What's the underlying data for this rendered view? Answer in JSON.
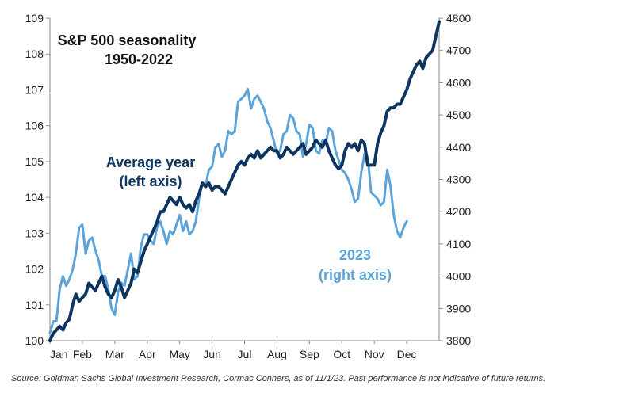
{
  "chart_data": {
    "type": "line",
    "title": "S&P 500 seasonality",
    "subtitle": "1950-2022",
    "x_ticks": [
      "Jan",
      "Feb",
      "Mar",
      "Apr",
      "May",
      "Jun",
      "Jul",
      "Aug",
      "Sep",
      "Oct",
      "Nov",
      "Dec"
    ],
    "x_range": [
      0,
      12
    ],
    "left_axis": {
      "ticks": [
        100,
        101,
        102,
        103,
        104,
        105,
        106,
        107,
        108,
        109
      ],
      "ylim": [
        100,
        109
      ]
    },
    "right_axis": {
      "ticks": [
        3800,
        3900,
        4000,
        4100,
        4200,
        4300,
        4400,
        4500,
        4600,
        4700,
        4800
      ],
      "ylim": [
        3800,
        4800
      ]
    },
    "grid": false,
    "series": [
      {
        "name": "Average year",
        "axis": "left",
        "color": "#0d3560",
        "x": [
          0.0,
          0.1,
          0.2,
          0.3,
          0.4,
          0.5,
          0.6,
          0.7,
          0.8,
          0.9,
          1.0,
          1.1,
          1.2,
          1.3,
          1.4,
          1.5,
          1.6,
          1.7,
          1.8,
          1.9,
          2.0,
          2.1,
          2.2,
          2.3,
          2.4,
          2.5,
          2.6,
          2.7,
          2.8,
          2.9,
          3.0,
          3.1,
          3.2,
          3.3,
          3.4,
          3.5,
          3.6,
          3.7,
          3.8,
          3.9,
          4.0,
          4.1,
          4.2,
          4.3,
          4.4,
          4.5,
          4.6,
          4.7,
          4.8,
          4.9,
          5.0,
          5.1,
          5.2,
          5.3,
          5.4,
          5.5,
          5.6,
          5.7,
          5.8,
          5.9,
          6.0,
          6.1,
          6.2,
          6.3,
          6.4,
          6.5,
          6.6,
          6.7,
          6.8,
          6.9,
          7.0,
          7.1,
          7.2,
          7.3,
          7.4,
          7.5,
          7.6,
          7.7,
          7.8,
          7.9,
          8.0,
          8.1,
          8.2,
          8.3,
          8.4,
          8.5,
          8.6,
          8.7,
          8.8,
          8.9,
          9.0,
          9.1,
          9.2,
          9.3,
          9.4,
          9.5,
          9.6,
          9.7,
          9.8,
          9.9,
          10.0,
          10.1,
          10.2,
          10.3,
          10.4,
          10.5,
          10.6,
          10.7,
          10.8,
          10.9,
          11.0,
          11.1,
          11.2,
          11.3,
          11.4,
          11.5,
          11.6,
          11.7,
          11.8,
          11.9,
          12.0
        ],
        "values": [
          100.0,
          100.2,
          100.3,
          100.4,
          100.3,
          100.5,
          100.6,
          101.0,
          101.3,
          101.1,
          101.2,
          101.3,
          101.6,
          101.5,
          101.4,
          101.6,
          101.8,
          101.5,
          101.3,
          101.2,
          101.4,
          101.7,
          101.5,
          101.2,
          101.4,
          101.6,
          102.0,
          101.9,
          102.2,
          102.5,
          102.7,
          102.9,
          103.1,
          103.3,
          103.6,
          103.6,
          103.8,
          104.0,
          103.9,
          103.8,
          104.0,
          103.8,
          103.7,
          103.8,
          103.6,
          103.9,
          104.1,
          104.4,
          104.3,
          104.4,
          104.2,
          104.3,
          104.3,
          104.2,
          104.1,
          104.3,
          104.5,
          104.7,
          104.9,
          105.0,
          104.9,
          105.1,
          105.2,
          105.1,
          105.3,
          105.1,
          105.2,
          105.3,
          105.4,
          105.3,
          105.3,
          105.1,
          105.2,
          105.4,
          105.3,
          105.2,
          105.3,
          105.4,
          105.5,
          105.2,
          105.3,
          105.4,
          105.6,
          105.5,
          105.4,
          105.6,
          105.3,
          105.1,
          104.9,
          104.8,
          104.9,
          105.3,
          105.5,
          105.4,
          105.5,
          105.3,
          105.6,
          105.5,
          104.9,
          104.9,
          104.9,
          105.5,
          105.8,
          106.0,
          106.4,
          106.5,
          106.5,
          106.6,
          106.6,
          106.8,
          107.0,
          107.3,
          107.5,
          107.7,
          107.8,
          107.6,
          107.9,
          108.0,
          108.1,
          108.5,
          108.9
        ],
        "annotation": "Average year\n(left axis)"
      },
      {
        "name": "2023",
        "axis": "right",
        "color": "#5aa4da",
        "x": [
          0.0,
          0.1,
          0.2,
          0.3,
          0.4,
          0.5,
          0.6,
          0.7,
          0.8,
          0.9,
          1.0,
          1.1,
          1.2,
          1.3,
          1.4,
          1.5,
          1.6,
          1.7,
          1.8,
          1.9,
          2.0,
          2.1,
          2.2,
          2.3,
          2.4,
          2.5,
          2.6,
          2.7,
          2.8,
          2.9,
          3.0,
          3.1,
          3.2,
          3.3,
          3.4,
          3.5,
          3.6,
          3.7,
          3.8,
          3.9,
          4.0,
          4.1,
          4.2,
          4.3,
          4.4,
          4.5,
          4.6,
          4.7,
          4.8,
          4.9,
          5.0,
          5.1,
          5.2,
          5.3,
          5.4,
          5.5,
          5.6,
          5.7,
          5.8,
          5.9,
          6.0,
          6.1,
          6.2,
          6.3,
          6.4,
          6.5,
          6.6,
          6.7,
          6.8,
          6.9,
          7.0,
          7.1,
          7.2,
          7.3,
          7.4,
          7.5,
          7.6,
          7.7,
          7.8,
          7.9,
          8.0,
          8.1,
          8.2,
          8.3,
          8.4,
          8.5,
          8.6,
          8.7,
          8.8,
          8.9,
          9.0,
          9.1,
          9.2,
          9.3,
          9.4,
          9.5,
          9.6,
          9.7,
          9.8,
          9.9,
          10.0,
          10.1,
          10.2,
          10.3,
          10.4,
          10.5,
          10.6,
          10.7,
          10.8,
          10.9,
          11.0
        ],
        "values": [
          3824,
          3860,
          3860,
          3960,
          4000,
          3970,
          3990,
          4020,
          4070,
          4150,
          4160,
          4070,
          4110,
          4120,
          4080,
          4050,
          4000,
          4000,
          3960,
          3900,
          3880,
          3950,
          3980,
          3970,
          4020,
          4070,
          3990,
          4000,
          4090,
          4130,
          4130,
          4110,
          4100,
          4150,
          4170,
          4140,
          4100,
          4140,
          4130,
          4160,
          4190,
          4140,
          4170,
          4130,
          4140,
          4170,
          4240,
          4290,
          4280,
          4330,
          4340,
          4400,
          4410,
          4370,
          4390,
          4450,
          4440,
          4450,
          4540,
          4550,
          4560,
          4580,
          4520,
          4550,
          4560,
          4540,
          4520,
          4480,
          4460,
          4420,
          4380,
          4390,
          4440,
          4450,
          4500,
          4490,
          4450,
          4440,
          4370,
          4410,
          4470,
          4460,
          4390,
          4380,
          4420,
          4410,
          4460,
          4450,
          4390,
          4360,
          4330,
          4320,
          4300,
          4270,
          4230,
          4240,
          4320,
          4380,
          4370,
          4260,
          4250,
          4240,
          4220,
          4230,
          4330,
          4280,
          4190,
          4140,
          4120,
          4150,
          4170
        ],
        "annotation": "2023\n(right axis)"
      }
    ],
    "source_note": "Source: Goldman Sachs Global Investment Research, Cormac Conners,  as of 11/1/23. Past performance is not indicative of future returns."
  }
}
